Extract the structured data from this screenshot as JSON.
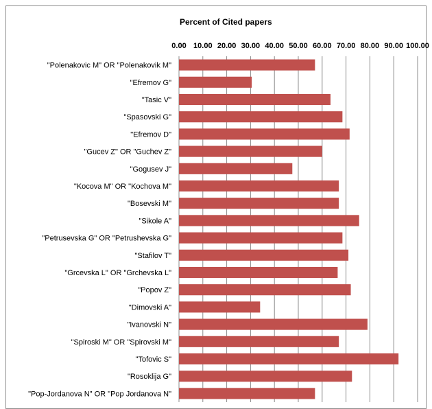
{
  "chart_data": {
    "type": "bar",
    "orientation": "horizontal",
    "title": "Percent of Cited papers",
    "xlabel": "",
    "ylabel": "",
    "xlim": [
      0,
      100
    ],
    "tick_labels": [
      "0.00",
      "10.00",
      "20.00",
      "30.00",
      "40.00",
      "50.00",
      "60.00",
      "70.00",
      "80.00",
      "90.00",
      "100.00"
    ],
    "grid": true,
    "bar_color": "#c0504d",
    "categories": [
      "\"Polenakovic M\" OR \"Polenakovik M\"",
      "\"Efremov G\"",
      "\"Tasic V\"",
      "\"Spasovski G\"",
      "\"Efremov D\"",
      "\"Gucev Z\" OR \"Guchev Z\"",
      "\"Gogusev J\"",
      "\"Kocova M\" OR \"Kochova M\"",
      "\"Bosevski M\"",
      "\"Sikole A\"",
      "\"Petrusevska G\" OR \"Petrushevska G\"",
      "\"Stafilov T\"",
      "\"Grcevska L\" OR \"Grchevska L\"",
      "\"Popov Z\"",
      "\"Dimovski A\"",
      "\"Ivanovski N\"",
      "\"Spiroski M\" OR \"Spirovski M\"",
      "\"Tofovic S\"",
      "\"Rosoklija G\"",
      "\"Pop-Jordanova N\" OR \"Pop Jordanova N\""
    ],
    "values": [
      57,
      30.5,
      63.5,
      68.5,
      71.5,
      60,
      47.5,
      67,
      67,
      75.5,
      68.5,
      71,
      66.5,
      72,
      34,
      79,
      67,
      92,
      72.5,
      57
    ]
  }
}
